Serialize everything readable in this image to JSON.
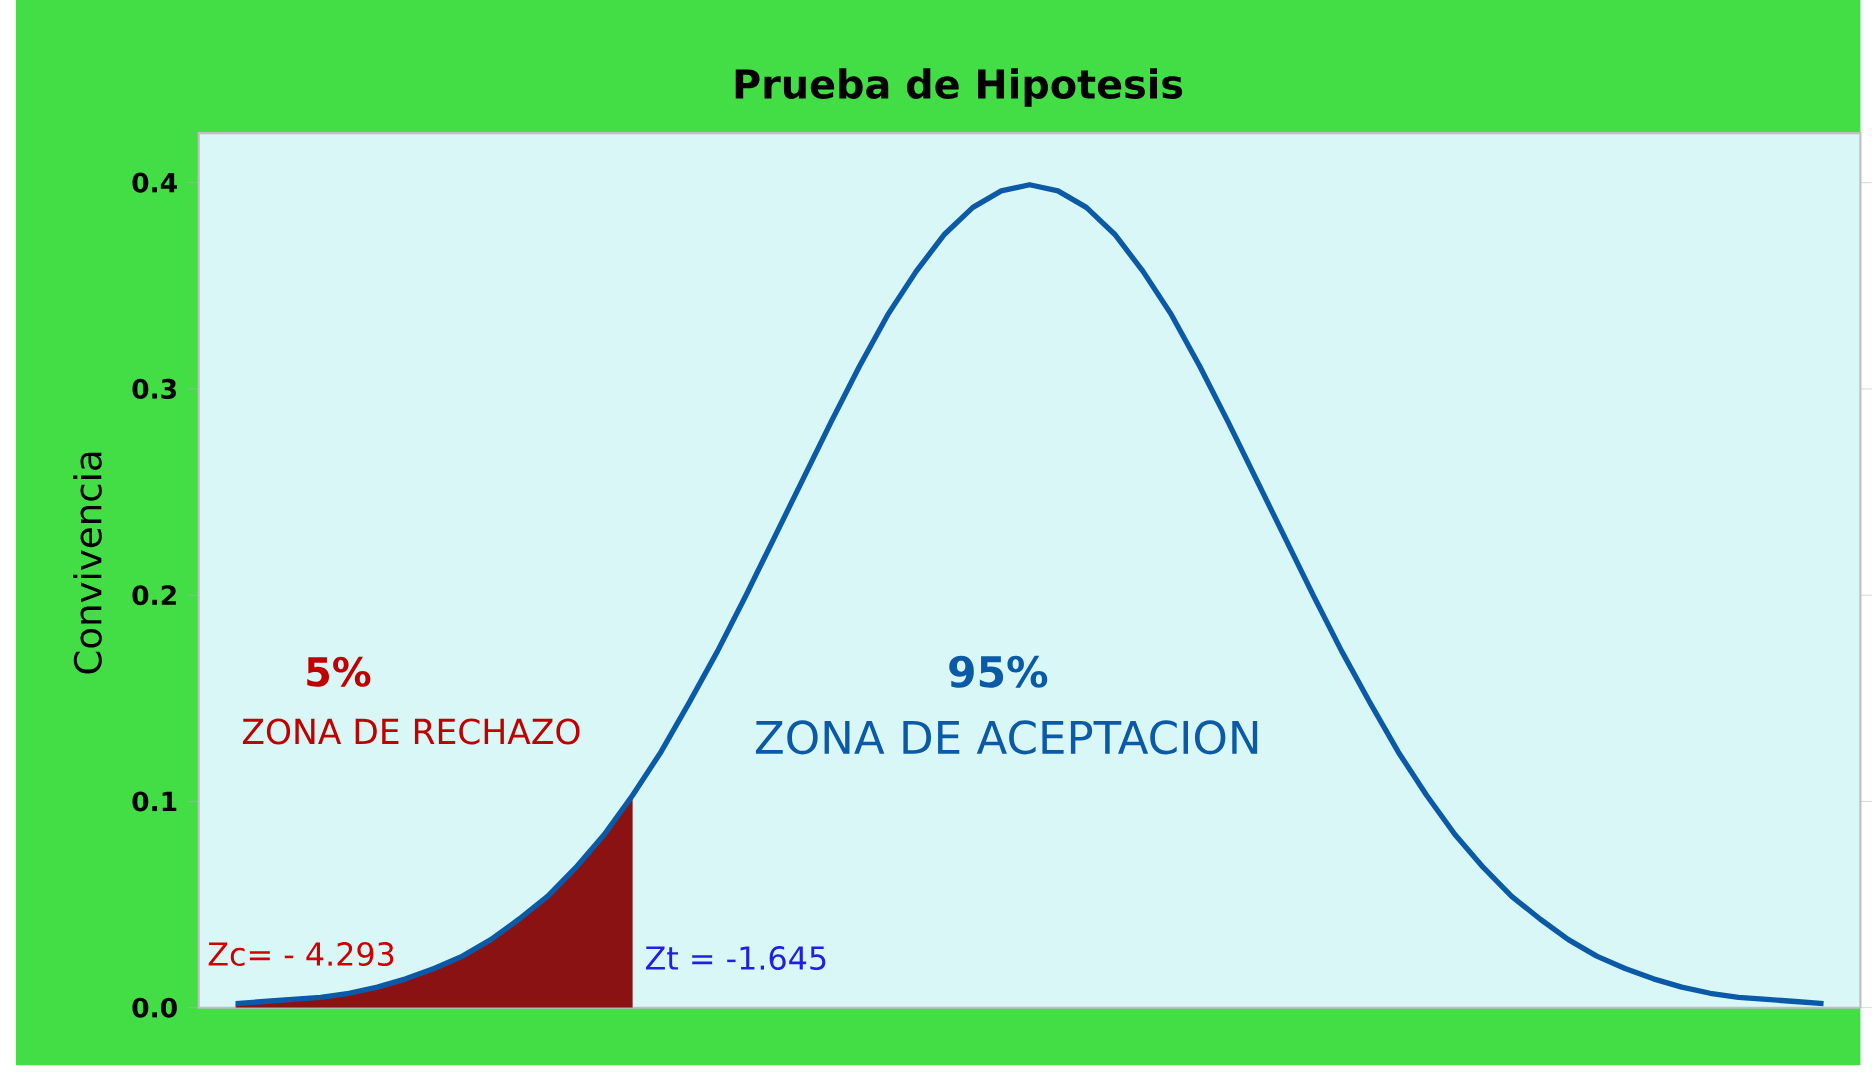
{
  "chart_data": {
    "type": "line",
    "title": "Prueba de Hipotesis",
    "ylabel": "Convivencia",
    "categories": [
      null,
      null,
      null,
      null,
      null,
      null,
      null,
      null,
      null,
      null,
      null,
      null,
      null,
      null,
      null,
      null,
      null,
      null,
      null,
      null,
      null,
      null,
      null,
      null,
      null,
      null,
      null,
      null,
      null,
      null,
      null,
      null,
      null,
      null,
      null,
      null,
      null,
      null,
      null,
      null,
      null,
      null,
      null,
      null,
      null,
      null,
      null,
      null,
      null,
      null,
      null,
      null,
      null,
      null,
      null,
      null,
      null
    ],
    "ylim": [
      0,
      0.424
    ],
    "yticks": [
      {
        "value": 0,
        "label": "0.0"
      },
      0.1,
      0.2,
      0.3,
      0.4
    ],
    "grid": false,
    "legend": false,
    "marker": "none",
    "line_style": "solid",
    "series": [
      {
        "type": "area",
        "color": "#8b1212",
        "values": [
          0.002,
          0.003,
          0.004,
          0.005,
          0.007,
          0.01,
          0.014,
          0.019,
          0.025,
          0.033,
          0.043,
          0.054,
          0.068,
          0.084,
          0.103,
          null,
          null,
          null,
          null,
          null,
          null,
          null,
          null,
          null,
          null,
          null,
          null,
          null,
          null,
          null,
          null,
          null,
          null,
          null,
          null,
          null,
          null,
          null,
          null,
          null,
          null,
          null,
          null,
          null,
          null,
          null,
          null,
          null,
          null,
          null,
          null,
          null,
          null,
          null,
          null,
          null,
          null
        ]
      },
      {
        "color": "#0b5aa8",
        "values": [
          0.002,
          0.003,
          0.004,
          0.005,
          0.007,
          0.01,
          0.014,
          0.019,
          0.025,
          0.033,
          0.043,
          0.054,
          0.068,
          0.084,
          0.103,
          0.124,
          0.148,
          0.173,
          0.2,
          0.228,
          0.256,
          0.284,
          0.311,
          0.336,
          0.357,
          0.375,
          0.388,
          0.396,
          0.399,
          0.396,
          0.388,
          0.375,
          0.357,
          0.336,
          0.311,
          0.284,
          0.256,
          0.228,
          0.2,
          0.173,
          0.148,
          0.124,
          0.103,
          0.084,
          0.068,
          0.054,
          0.043,
          0.033,
          0.025,
          0.019,
          0.014,
          0.01,
          0.007,
          0.005,
          0.004,
          0.003,
          0.002
        ]
      }
    ],
    "annotations": [
      "5%",
      "ZONA DE RECHAZO",
      "95%",
      "ZONA DE ACEPTACION",
      "Zc= - 4.293",
      "Zt = -1.645"
    ]
  }
}
